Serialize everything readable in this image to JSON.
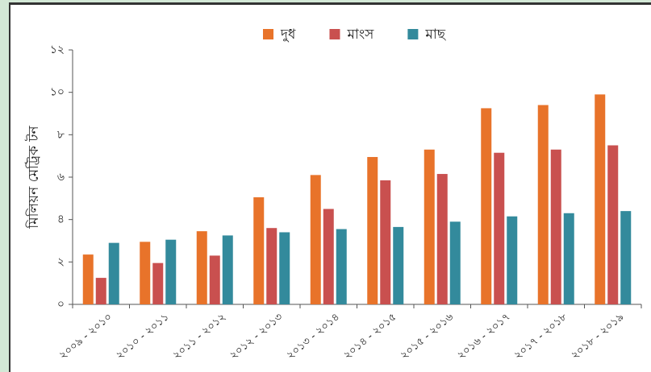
{
  "chart_data": {
    "type": "bar",
    "y_label": "মিলিয়ন মেট্রিক টন",
    "categories": [
      "২০০৯ - ২০১০",
      "২০১০ - ২০১১",
      "২০১১ - ২০১২",
      "২০১২ - ২০১৩",
      "২০১৩ - ২০১৪",
      "২০১৪ - ২০১৫",
      "২০১৫ - ২০১৬",
      "২০১৬ - ২০১৭",
      "২০১৭ - ২০১৮",
      "২০১৮ - ২০১৯"
    ],
    "series": [
      {
        "name": "দুধ",
        "color": "#e8732a",
        "values": [
          2.35,
          2.95,
          3.45,
          5.05,
          6.1,
          6.95,
          7.3,
          9.25,
          9.4,
          9.9
        ]
      },
      {
        "name": "মাংস",
        "color": "#c9504f",
        "values": [
          1.25,
          1.95,
          2.3,
          3.6,
          4.5,
          5.85,
          6.15,
          7.15,
          7.3,
          7.5
        ]
      },
      {
        "name": "মাছ",
        "color": "#338a9c",
        "values": [
          2.9,
          3.05,
          3.25,
          3.4,
          3.55,
          3.65,
          3.9,
          4.15,
          4.3,
          4.4
        ]
      }
    ],
    "ylim": [
      0,
      12
    ],
    "yticks": [
      {
        "value": 0,
        "label": "০"
      },
      {
        "value": 2,
        "label": "২"
      },
      {
        "value": 4,
        "label": "৪"
      },
      {
        "value": 6,
        "label": "৬"
      },
      {
        "value": 8,
        "label": "৮"
      },
      {
        "value": 10,
        "label": "১০"
      },
      {
        "value": 12,
        "label": "১২"
      }
    ],
    "legend": "top"
  }
}
